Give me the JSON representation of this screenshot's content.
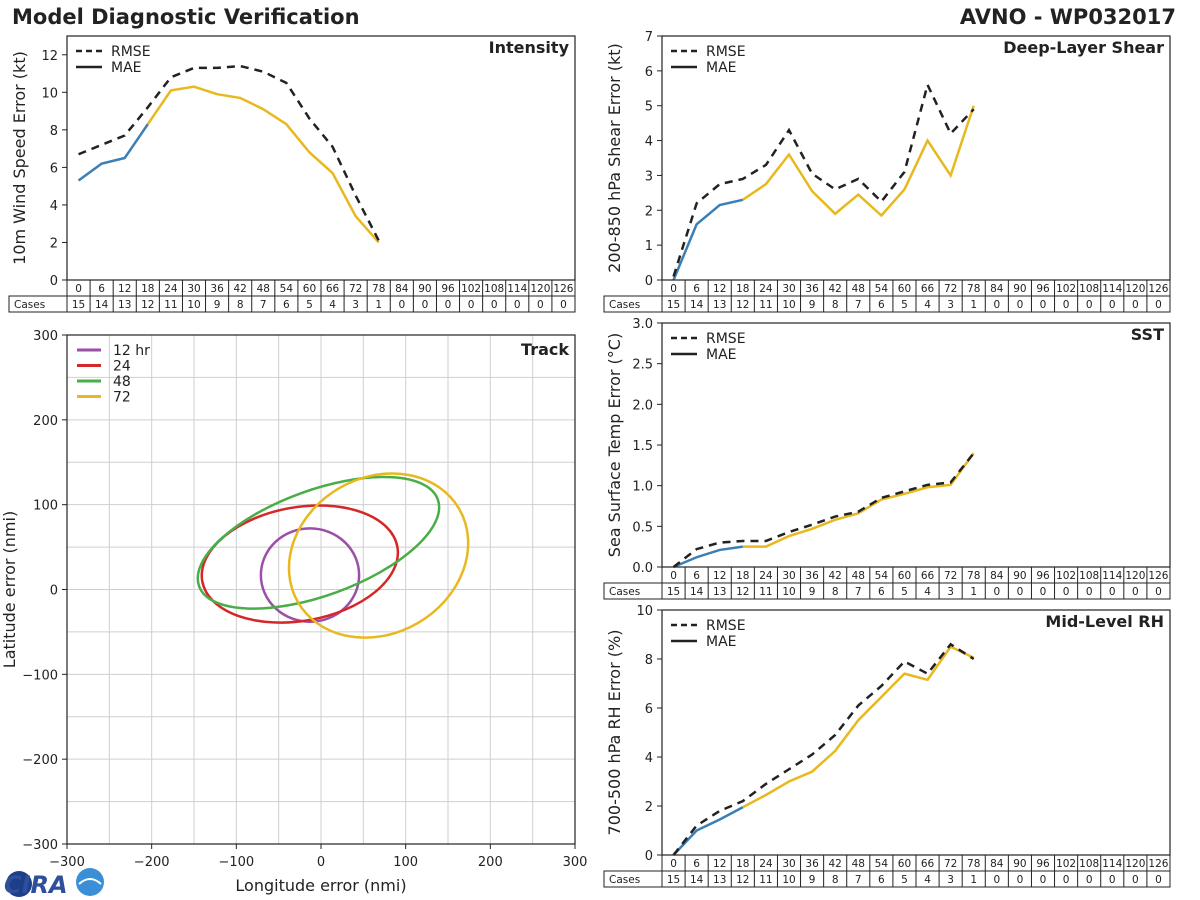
{
  "header": {
    "title": "Model Diagnostic Verification",
    "model_storm": "AVNO - WP032017"
  },
  "logo": {
    "text": "CIRA"
  },
  "colors": {
    "mae_blue": "#3a7fb6",
    "mae_gold": "#e8b81e",
    "rmse": "#222222"
  },
  "hours": [
    "0",
    "6",
    "12",
    "18",
    "24",
    "30",
    "36",
    "42",
    "48",
    "54",
    "60",
    "66",
    "72",
    "78",
    "84",
    "90",
    "96",
    "102",
    "108",
    "114",
    "120",
    "126"
  ],
  "cases_label": "Cases",
  "cases": [
    "15",
    "14",
    "13",
    "12",
    "11",
    "10",
    "9",
    "8",
    "7",
    "6",
    "5",
    "4",
    "3",
    "1",
    "0",
    "0",
    "0",
    "0",
    "0",
    "0",
    "0",
    "0"
  ],
  "legend": {
    "rmse": "RMSE",
    "mae": "MAE"
  },
  "chart_data": [
    {
      "id": "intensity",
      "type": "line",
      "title": "Intensity",
      "ylabel": "10m Wind Speed Error (kt)",
      "ylim": [
        0,
        13
      ],
      "yticks": [
        "0",
        "2",
        "4",
        "6",
        "8",
        "10",
        "12"
      ],
      "x": [
        0,
        6,
        12,
        18,
        24,
        30,
        36,
        42,
        48,
        54,
        60,
        66,
        72,
        78
      ],
      "rmse": [
        6.7,
        7.2,
        7.7,
        9.2,
        10.8,
        11.3,
        11.3,
        11.4,
        11.1,
        10.5,
        8.6,
        7.1,
        4.5,
        2.1
      ],
      "mae": [
        5.3,
        6.2,
        6.5,
        8.3,
        10.1,
        10.3,
        9.9,
        9.7,
        9.1,
        8.3,
        6.8,
        5.7,
        3.4,
        2.0
      ],
      "mae_blue_until": 18
    },
    {
      "id": "shear",
      "type": "line",
      "title": "Deep-Layer Shear",
      "ylabel": "200-850 hPa Shear Error (kt)",
      "ylim": [
        0,
        7
      ],
      "yticks": [
        "0",
        "1",
        "2",
        "3",
        "4",
        "5",
        "6",
        "7"
      ],
      "x": [
        0,
        6,
        12,
        18,
        24,
        30,
        36,
        42,
        48,
        54,
        60,
        66,
        72,
        78
      ],
      "rmse": [
        0.1,
        2.2,
        2.75,
        2.9,
        3.3,
        4.3,
        3.05,
        2.6,
        2.9,
        2.25,
        3.1,
        5.6,
        4.2,
        4.9
      ],
      "mae": [
        0.0,
        1.6,
        2.15,
        2.3,
        2.75,
        3.6,
        2.55,
        1.9,
        2.45,
        1.85,
        2.6,
        4.0,
        3.0,
        5.0
      ],
      "mae_blue_until": 18
    },
    {
      "id": "sst",
      "type": "line",
      "title": "SST",
      "ylabel": "Sea Surface Temp Error (°C)",
      "ylim": [
        0,
        3
      ],
      "yticks": [
        "0.0",
        "0.5",
        "1.0",
        "1.5",
        "2.0",
        "2.5",
        "3.0"
      ],
      "x": [
        0,
        6,
        12,
        18,
        24,
        30,
        36,
        42,
        48,
        54,
        60,
        66,
        72,
        78
      ],
      "rmse": [
        0.0,
        0.22,
        0.3,
        0.32,
        0.32,
        0.43,
        0.52,
        0.62,
        0.68,
        0.85,
        0.93,
        1.01,
        1.04,
        1.4
      ],
      "mae": [
        0.0,
        0.12,
        0.21,
        0.25,
        0.25,
        0.38,
        0.47,
        0.58,
        0.66,
        0.83,
        0.9,
        0.98,
        1.01,
        1.4
      ],
      "mae_blue_until": 18
    },
    {
      "id": "rh",
      "type": "line",
      "title": "Mid-Level RH",
      "ylabel": "700-500 hPa RH Error (%)",
      "ylim": [
        0,
        10
      ],
      "yticks": [
        "0",
        "2",
        "4",
        "6",
        "8",
        "10"
      ],
      "x": [
        0,
        6,
        12,
        18,
        24,
        30,
        36,
        42,
        48,
        54,
        60,
        66,
        72,
        78
      ],
      "rmse": [
        0.0,
        1.2,
        1.8,
        2.2,
        2.9,
        3.5,
        4.1,
        4.9,
        6.1,
        6.9,
        7.9,
        7.4,
        8.6,
        8.0
      ],
      "mae": [
        0.0,
        1.0,
        1.45,
        1.95,
        2.45,
        3.0,
        3.4,
        4.25,
        5.5,
        6.45,
        7.4,
        7.15,
        8.5,
        8.05
      ],
      "mae_blue_until": 18
    },
    {
      "id": "track",
      "type": "ellipse",
      "title": "Track",
      "xlabel": "Longitude error (nmi)",
      "ylabel": "Latitude error (nmi)",
      "xlim": [
        -300,
        300
      ],
      "ylim": [
        -300,
        300
      ],
      "xticks": [
        "−300",
        "−200",
        "−100",
        "0",
        "100",
        "200",
        "300"
      ],
      "yticks": [
        "300",
        "200",
        "100",
        "0",
        "−100",
        "−200",
        "−300"
      ],
      "series": [
        {
          "name": "12 hr",
          "color": "#9b4fa8",
          "cx": -13,
          "cy": 17,
          "rx": 58,
          "ry": 55,
          "angle": 0
        },
        {
          "name": "24",
          "color": "#d62728",
          "cx": -25,
          "cy": 30,
          "rx": 117,
          "ry": 67,
          "angle": -10
        },
        {
          "name": "48",
          "color": "#4aae48",
          "cx": -3,
          "cy": 55,
          "rx": 150,
          "ry": 62,
          "angle": -20
        },
        {
          "name": "72",
          "color": "#e8b81e",
          "cx": 68,
          "cy": 40,
          "rx": 110,
          "ry": 92,
          "angle": -30
        }
      ]
    }
  ]
}
